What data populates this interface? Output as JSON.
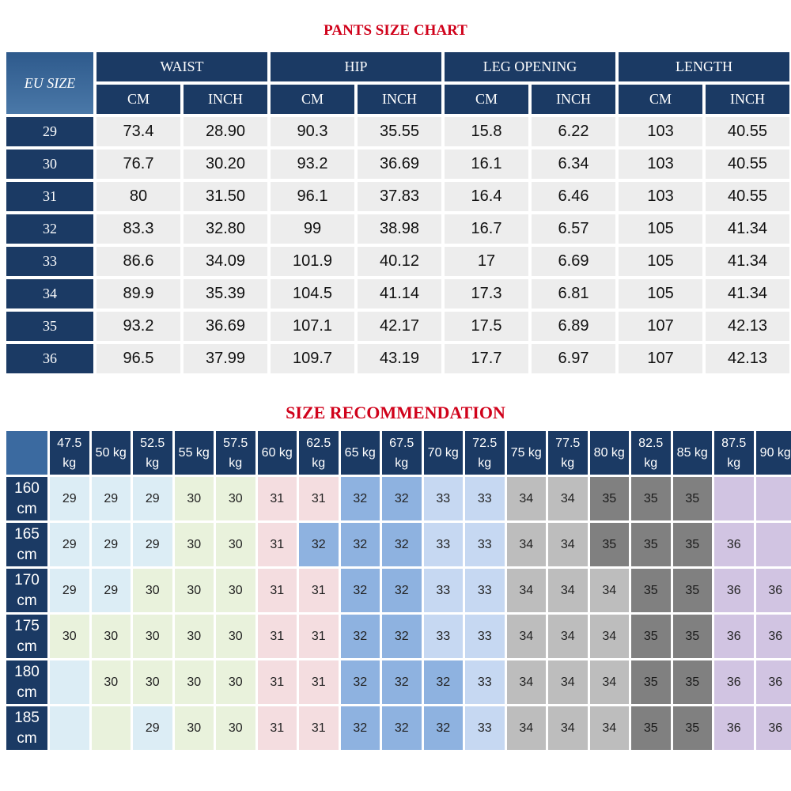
{
  "size_chart": {
    "title": "PANTS SIZE CHART",
    "corner_label": "EU SIZE",
    "groups": [
      "WAIST",
      "HIP",
      "LEG OPENING",
      "LENGTH"
    ],
    "units": [
      "CM",
      "INCH"
    ],
    "rows": [
      {
        "size": "29",
        "values": [
          "73.4",
          "28.90",
          "90.3",
          "35.55",
          "15.8",
          "6.22",
          "103",
          "40.55"
        ]
      },
      {
        "size": "30",
        "values": [
          "76.7",
          "30.20",
          "93.2",
          "36.69",
          "16.1",
          "6.34",
          "103",
          "40.55"
        ]
      },
      {
        "size": "31",
        "values": [
          "80",
          "31.50",
          "96.1",
          "37.83",
          "16.4",
          "6.46",
          "103",
          "40.55"
        ]
      },
      {
        "size": "32",
        "values": [
          "83.3",
          "32.80",
          "99",
          "38.98",
          "16.7",
          "6.57",
          "105",
          "41.34"
        ]
      },
      {
        "size": "33",
        "values": [
          "86.6",
          "34.09",
          "101.9",
          "40.12",
          "17",
          "6.69",
          "105",
          "41.34"
        ]
      },
      {
        "size": "34",
        "values": [
          "89.9",
          "35.39",
          "104.5",
          "41.14",
          "17.3",
          "6.81",
          "105",
          "41.34"
        ]
      },
      {
        "size": "35",
        "values": [
          "93.2",
          "36.69",
          "107.1",
          "42.17",
          "17.5",
          "6.89",
          "107",
          "42.13"
        ]
      },
      {
        "size": "36",
        "values": [
          "96.5",
          "37.99",
          "109.7",
          "43.19",
          "17.7",
          "6.97",
          "107",
          "42.13"
        ]
      }
    ]
  },
  "recommendation": {
    "title": "SIZE RECOMMENDATION",
    "weights": [
      "47.5 kg",
      "50 kg",
      "52.5 kg",
      "55 kg",
      "57.5 kg",
      "60 kg",
      "62.5 kg",
      "65 kg",
      "67.5 kg",
      "70 kg",
      "72.5 kg",
      "75 kg",
      "77.5 kg",
      "80 kg",
      "82.5 kg",
      "85 kg",
      "87.5 kg",
      "90 kg"
    ],
    "heights": [
      "160 cm",
      "165 cm",
      "170 cm",
      "175 cm",
      "180 cm",
      "185 cm"
    ],
    "grid": [
      [
        "29",
        "29",
        "29",
        "30",
        "30",
        "31",
        "31",
        "32",
        "32",
        "33",
        "33",
        "34",
        "34",
        "35",
        "35",
        "35",
        "",
        ""
      ],
      [
        "29",
        "29",
        "29",
        "30",
        "30",
        "31",
        "32",
        "32",
        "32",
        "33",
        "33",
        "34",
        "34",
        "35",
        "35",
        "35",
        "36",
        ""
      ],
      [
        "29",
        "29",
        "30",
        "30",
        "30",
        "31",
        "31",
        "32",
        "32",
        "33",
        "33",
        "34",
        "34",
        "34",
        "35",
        "35",
        "36",
        "36"
      ],
      [
        "30",
        "30",
        "30",
        "30",
        "30",
        "31",
        "31",
        "32",
        "32",
        "33",
        "33",
        "34",
        "34",
        "34",
        "35",
        "35",
        "36",
        "36"
      ],
      [
        "",
        "30",
        "30",
        "30",
        "30",
        "31",
        "31",
        "32",
        "32",
        "32",
        "33",
        "34",
        "34",
        "34",
        "35",
        "35",
        "36",
        "36"
      ],
      [
        "",
        "",
        "29",
        "30",
        "30",
        "31",
        "31",
        "32",
        "32",
        "32",
        "33",
        "34",
        "34",
        "34",
        "35",
        "35",
        "36",
        "36"
      ]
    ],
    "colors": {
      "29": "#dcedf5",
      "30": "#e9f2dc",
      "31": "#f4dde0",
      "32": "#8eb2e0",
      "33": "#c6d8f2",
      "34": "#bdbdbd",
      "35": "#808080",
      "36": "#d1c4e2",
      "light_blue": "#dcedf5",
      "light_green": "#e9f2dc",
      "grey": "#bdbdbd",
      "lavender": "#d1c4e2"
    },
    "empty_colors": [
      [
        "",
        "",
        "",
        "",
        "",
        "",
        "",
        "",
        "",
        "",
        "",
        "",
        "",
        "",
        "",
        "",
        "lavender",
        "lavender"
      ],
      [
        "",
        "",
        "",
        "",
        "",
        "",
        "",
        "",
        "",
        "",
        "",
        "",
        "",
        "",
        "",
        "",
        "",
        "lavender"
      ],
      [
        "",
        "",
        "",
        "",
        "",
        "",
        "",
        "",
        "",
        "",
        "",
        "",
        "",
        "",
        "",
        "",
        "",
        ""
      ],
      [
        "",
        "",
        "",
        "",
        "",
        "",
        "",
        "",
        "",
        "",
        "",
        "",
        "",
        "",
        "",
        "",
        "",
        ""
      ],
      [
        "light_blue",
        "",
        "",
        "",
        "",
        "",
        "",
        "",
        "",
        "",
        "",
        "",
        "",
        "",
        "",
        "",
        "",
        ""
      ],
      [
        "light_blue",
        "light_green",
        "",
        "",
        "",
        "",
        "",
        "",
        "",
        "",
        "",
        "",
        "",
        "",
        "",
        "",
        "",
        ""
      ]
    ]
  }
}
